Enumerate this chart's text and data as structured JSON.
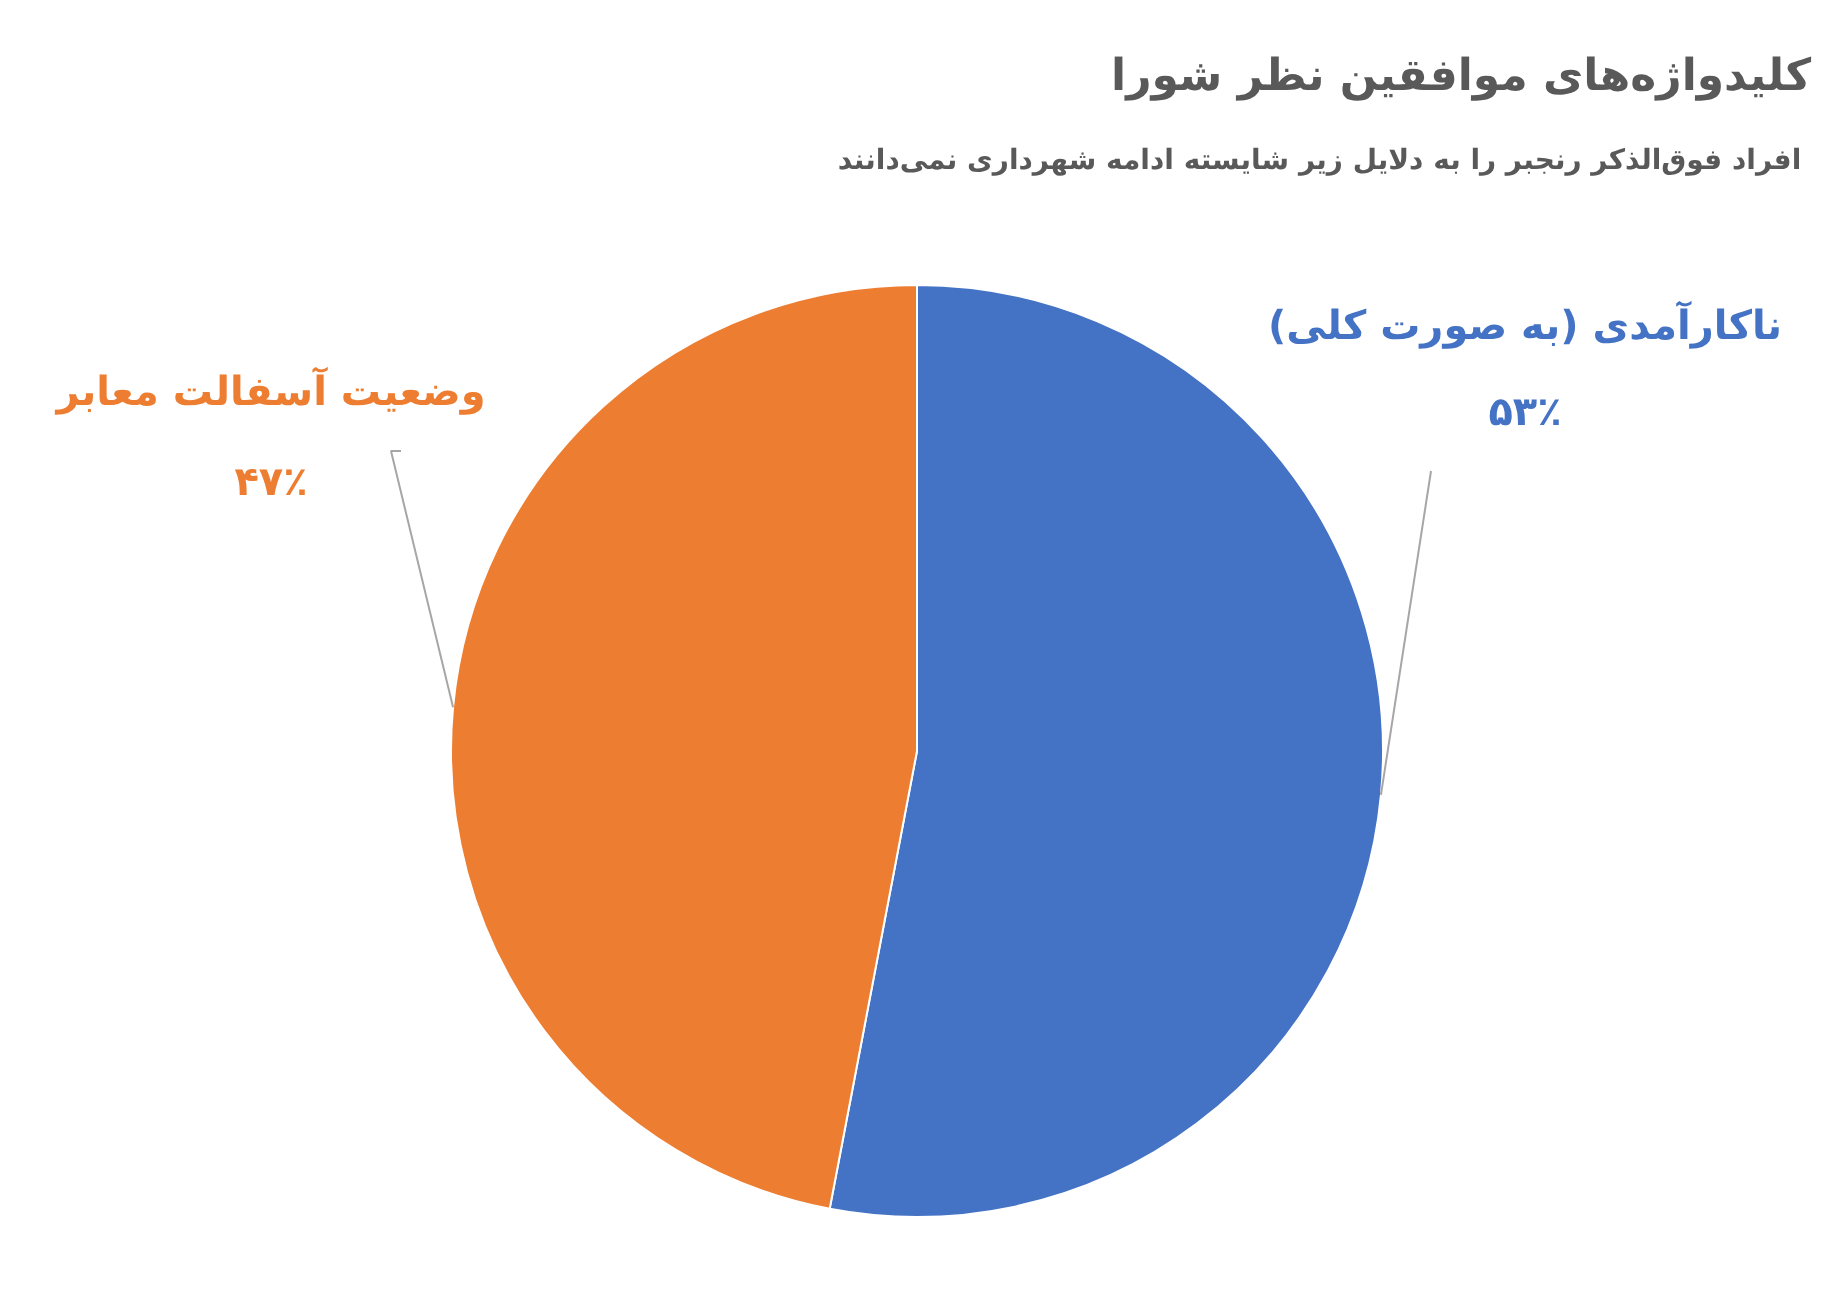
{
  "chart_data": {
    "type": "pie",
    "title": "کلیدواژه‌های موافقین نظر شورا",
    "subtitle": "افراد فوق‌الذکر رنجبر را به دلایل زیر  شایسته ادامه شهرداری نمی‌دانند",
    "categories": [
      "ناکارآمدی (به صورت کلی)",
      "وضعیت آسفالت معابر"
    ],
    "values": [
      53,
      47
    ],
    "colors": [
      "#4472c4",
      "#ed7d31"
    ],
    "value_labels": [
      "۵۳٪",
      "۴۷٪"
    ]
  }
}
